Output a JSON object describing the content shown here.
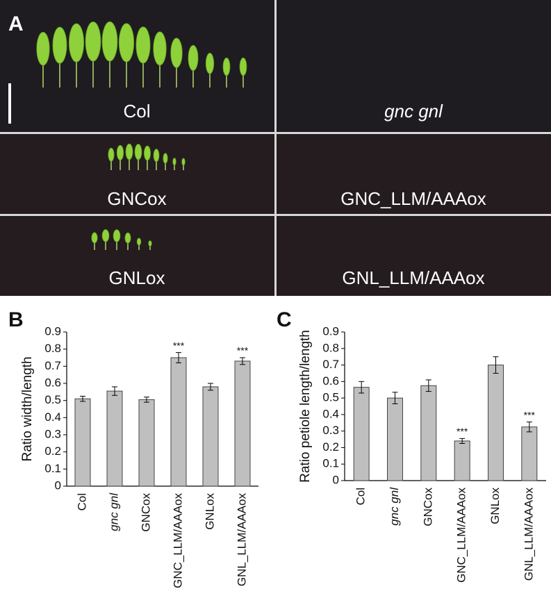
{
  "panel_a": {
    "label": "A",
    "panels": [
      "Col",
      "gnc gnl",
      "GNCox",
      "GNC_LLM/AAAox",
      "GNLox",
      "GNL_LLM/AAAox"
    ]
  },
  "chart_data": [
    {
      "type": "bar",
      "label": "B",
      "y_label": "Ratio width/length",
      "categories": [
        "Col",
        "gnc gnl",
        "GNCox",
        "GNC_LLM/AAAox",
        "GNLox",
        "GNL_LLM/AAAox"
      ],
      "values": [
        0.51,
        0.555,
        0.505,
        0.75,
        0.58,
        0.73
      ],
      "errors": [
        0.015,
        0.025,
        0.015,
        0.03,
        0.02,
        0.02
      ],
      "annotations": [
        null,
        null,
        null,
        "***",
        null,
        "***"
      ],
      "color": "#bfbfbf",
      "ylim": [
        0,
        0.9
      ],
      "yticks": [
        0,
        0.1,
        0.2,
        0.3,
        0.4,
        0.5,
        0.6,
        0.7,
        0.8,
        0.9
      ]
    },
    {
      "type": "bar",
      "label": "C",
      "y_label": "Ratio petiole length/length",
      "categories": [
        "Col",
        "gnc gnl",
        "GNCox",
        "GNC_LLM/AAAox",
        "GNLox",
        "GNL_LLM/AAAox"
      ],
      "values": [
        0.565,
        0.5,
        0.575,
        0.24,
        0.7,
        0.325
      ],
      "errors": [
        0.035,
        0.035,
        0.035,
        0.015,
        0.05,
        0.03
      ],
      "annotations": [
        null,
        null,
        null,
        "***",
        null,
        "***"
      ],
      "color": "#bfbfbf",
      "ylim": [
        0,
        0.9
      ],
      "yticks": [
        0,
        0.1,
        0.2,
        0.3,
        0.4,
        0.5,
        0.6,
        0.7,
        0.8,
        0.9
      ]
    }
  ]
}
